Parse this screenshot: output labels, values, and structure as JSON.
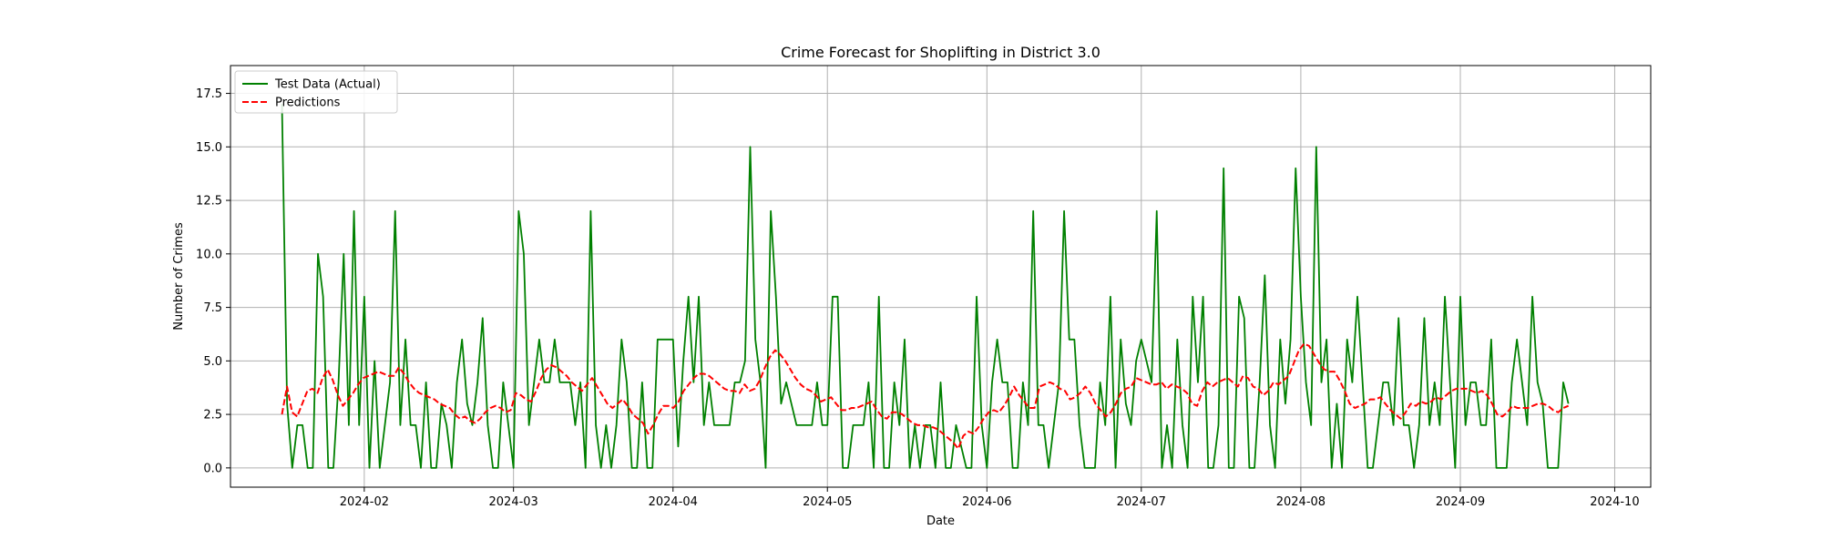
{
  "chart_data": {
    "type": "line",
    "title": "Crime Forecast for Shoplifting in District 3.0",
    "xlabel": "Date",
    "ylabel": "Number of Crimes",
    "x_start": "2024-01-16",
    "x_end": "2024-09-22",
    "xlim": [
      "2024-01-06",
      "2024-10-08"
    ],
    "ylim": [
      -0.9,
      18.8
    ],
    "x_ticks": [
      "2024-02",
      "2024-03",
      "2024-04",
      "2024-05",
      "2024-06",
      "2024-07",
      "2024-08",
      "2024-09",
      "2024-10"
    ],
    "y_ticks": [
      "0.0",
      "2.5",
      "5.0",
      "7.5",
      "10.0",
      "12.5",
      "15.0",
      "17.5"
    ],
    "grid": true,
    "legend_position": "top-left",
    "series": [
      {
        "name": "Test Data (Actual)",
        "color": "#008000",
        "dash": "solid",
        "values": [
          17,
          3,
          0,
          2,
          2,
          0,
          0,
          10,
          8,
          0,
          0,
          4,
          10,
          2,
          12,
          2,
          8,
          0,
          5,
          0,
          2,
          4,
          12,
          2,
          6,
          2,
          2,
          0,
          4,
          0,
          0,
          3,
          2,
          0,
          4,
          6,
          3,
          2,
          4,
          7,
          2,
          0,
          0,
          4,
          2,
          0,
          12,
          10,
          2,
          4,
          6,
          4,
          4,
          6,
          4,
          4,
          4,
          2,
          4,
          0,
          12,
          2,
          0,
          2,
          0,
          2,
          6,
          4,
          0,
          0,
          4,
          0,
          0,
          6,
          6,
          6,
          6,
          1,
          5,
          8,
          4,
          8,
          2,
          4,
          2,
          2,
          2,
          2,
          4,
          4,
          5,
          15,
          6,
          4,
          0,
          12,
          8,
          3,
          4,
          3,
          2,
          2,
          2,
          2,
          4,
          2,
          2,
          8,
          8,
          0,
          0,
          2,
          2,
          2,
          4,
          0,
          8,
          0,
          0,
          4,
          2,
          6,
          0,
          2,
          0,
          2,
          2,
          0,
          4,
          0,
          0,
          2,
          1,
          0,
          0,
          8,
          2,
          0,
          4,
          6,
          4,
          4,
          0,
          0,
          4,
          2,
          12,
          2,
          2,
          0,
          2,
          4,
          12,
          6,
          6,
          2,
          0,
          0,
          0,
          4,
          2,
          8,
          0,
          6,
          3,
          2,
          5,
          6,
          5,
          4,
          12,
          0,
          2,
          0,
          6,
          2,
          0,
          8,
          4,
          8,
          0,
          0,
          2,
          14,
          0,
          0,
          8,
          7,
          0,
          0,
          4,
          9,
          2,
          0,
          6,
          3,
          6,
          14,
          8,
          4,
          2,
          15,
          4,
          6,
          0,
          3,
          0,
          6,
          4,
          8,
          4,
          0,
          0,
          2,
          4,
          4,
          2,
          7,
          2,
          2,
          0,
          2,
          7,
          2,
          4,
          2,
          8,
          4,
          0,
          8,
          2,
          4,
          4,
          2,
          2,
          6,
          0,
          0,
          0,
          4,
          6,
          4,
          2,
          8,
          4,
          3,
          0,
          0,
          0,
          4,
          3
        ]
      },
      {
        "name": "Predictions",
        "color": "#ff0000",
        "dash": "dashed",
        "values": [
          2.5,
          3.8,
          2.6,
          2.4,
          3.0,
          3.6,
          3.7,
          3.5,
          4.2,
          4.6,
          4.1,
          3.4,
          2.9,
          3.2,
          3.5,
          3.9,
          4.2,
          4.3,
          4.4,
          4.5,
          4.4,
          4.3,
          4.3,
          4.7,
          4.4,
          4.0,
          3.7,
          3.5,
          3.4,
          3.3,
          3.2,
          3.0,
          2.9,
          2.8,
          2.5,
          2.3,
          2.4,
          2.2,
          2.1,
          2.3,
          2.6,
          2.8,
          2.9,
          2.8,
          2.6,
          2.7,
          3.5,
          3.4,
          3.2,
          3.1,
          3.6,
          4.2,
          4.6,
          4.8,
          4.7,
          4.5,
          4.3,
          4.0,
          3.8,
          3.6,
          3.9,
          4.2,
          3.8,
          3.4,
          3.0,
          2.8,
          3.0,
          3.2,
          2.9,
          2.5,
          2.3,
          2.1,
          1.6,
          2.0,
          2.5,
          2.9,
          2.9,
          2.8,
          3.1,
          3.6,
          3.9,
          4.2,
          4.4,
          4.4,
          4.3,
          4.1,
          3.9,
          3.7,
          3.6,
          3.6,
          3.5,
          3.9,
          3.6,
          3.7,
          4.1,
          4.7,
          5.2,
          5.5,
          5.3,
          5.0,
          4.6,
          4.2,
          3.9,
          3.7,
          3.6,
          3.4,
          3.1,
          3.2,
          3.3,
          3.0,
          2.7,
          2.7,
          2.8,
          2.8,
          2.9,
          3.0,
          3.1,
          2.7,
          2.4,
          2.3,
          2.6,
          2.6,
          2.5,
          2.3,
          2.1,
          2.0,
          2.0,
          1.9,
          1.9,
          1.8,
          1.6,
          1.4,
          1.2,
          0.9,
          1.5,
          1.7,
          1.6,
          1.9,
          2.3,
          2.6,
          2.7,
          2.6,
          2.9,
          3.3,
          3.8,
          3.4,
          3.1,
          2.8,
          2.8,
          3.8,
          3.9,
          4.0,
          3.9,
          3.7,
          3.6,
          3.2,
          3.3,
          3.5,
          3.8,
          3.5,
          3.0,
          2.7,
          2.4,
          2.6,
          3.0,
          3.5,
          3.7,
          3.8,
          4.2,
          4.1,
          4.0,
          3.9,
          3.9,
          4.0,
          3.7,
          3.9,
          3.8,
          3.7,
          3.5,
          3.0,
          2.9,
          3.6,
          4.0,
          3.8,
          4.0,
          4.1,
          4.2,
          4.0,
          3.8,
          4.3,
          4.2,
          3.8,
          3.7,
          3.4,
          3.6,
          4.0,
          3.9,
          4.1,
          4.3,
          4.9,
          5.5,
          5.8,
          5.7,
          5.3,
          4.9,
          4.6,
          4.5,
          4.5,
          4.1,
          3.6,
          3.0,
          2.8,
          2.9,
          3.0,
          3.2,
          3.2,
          3.3,
          3.0,
          2.7,
          2.5,
          2.3,
          2.6,
          3.0,
          2.9,
          3.1,
          3.0,
          3.1,
          3.3,
          3.2,
          3.4,
          3.6,
          3.7,
          3.7,
          3.7,
          3.6,
          3.5,
          3.6,
          3.4,
          3.0,
          2.5,
          2.4,
          2.6,
          2.9,
          2.8,
          2.8,
          2.8,
          2.9,
          3.0,
          3.0,
          2.9,
          2.7,
          2.6,
          2.8,
          2.9
        ]
      }
    ]
  }
}
